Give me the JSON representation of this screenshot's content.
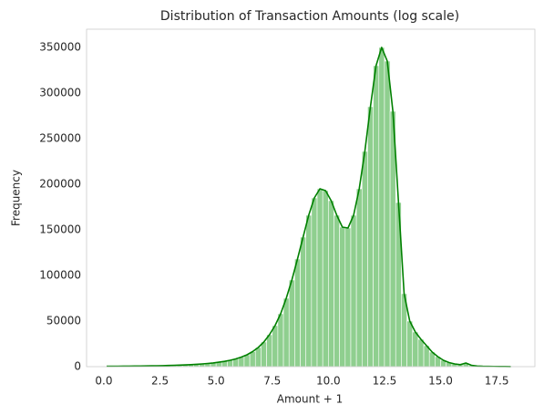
{
  "chart_data": {
    "type": "histogram",
    "title": "Distribution of Transaction Amounts (log scale)",
    "x_label": "Amount + 1",
    "y_label": "Frequency",
    "bins": [
      0,
      0.25,
      0.5,
      0.75,
      1,
      1.25,
      1.5,
      1.75,
      2,
      2.25,
      2.5,
      2.75,
      3,
      3.25,
      3.5,
      3.75,
      4,
      4.25,
      4.5,
      4.75,
      5,
      5.25,
      5.5,
      5.75,
      6,
      6.25,
      6.5,
      6.75,
      7,
      7.25,
      7.5,
      7.75,
      8,
      8.25,
      8.5,
      8.75,
      9,
      9.25,
      9.5,
      9.75,
      10,
      10.25,
      10.5,
      10.75,
      11,
      11.25,
      11.5,
      11.75,
      12,
      12.25,
      12.5,
      12.75,
      13,
      13.25,
      13.5,
      13.75,
      14,
      14.25,
      14.5,
      14.75,
      15,
      15.25,
      15.5,
      15.75,
      16,
      16.25,
      16.5,
      16.75,
      17,
      17.25,
      17.5,
      17.75,
      18,
      18.25
    ],
    "values": [
      400,
      450,
      500,
      550,
      600,
      650,
      700,
      800,
      900,
      1000,
      1100,
      1300,
      1500,
      1700,
      1900,
      2200,
      2600,
      3000,
      3500,
      4100,
      4900,
      5800,
      7000,
      8500,
      10500,
      13000,
      16500,
      21000,
      27000,
      35000,
      45000,
      58000,
      75000,
      95000,
      118000,
      142000,
      166000,
      185000,
      195000,
      193000,
      182000,
      166000,
      153000,
      152000,
      166000,
      195000,
      236000,
      285000,
      330000,
      350000,
      335000,
      280000,
      180000,
      80000,
      50000,
      38000,
      30000,
      23000,
      16000,
      11000,
      7000,
      4500,
      3000,
      2200,
      4000,
      1500,
      700,
      400,
      300,
      250,
      200,
      150,
      100
    ],
    "color": "#8fcf8f",
    "line_color": "#008000",
    "xlim": [
      -0.77,
      19.2
    ],
    "xticks": [
      {
        "value": 0,
        "label": "0.0"
      },
      2.5,
      {
        "value": 5,
        "label": "5.0"
      },
      7.5,
      {
        "value": 10,
        "label": "10.0"
      },
      12.5,
      {
        "value": 15,
        "label": "15.0"
      },
      17.5
    ],
    "ylim": [
      0,
      370000
    ],
    "yticks": [
      0,
      50000,
      100000,
      150000,
      200000,
      250000,
      300000,
      350000
    ],
    "grid": false
  }
}
